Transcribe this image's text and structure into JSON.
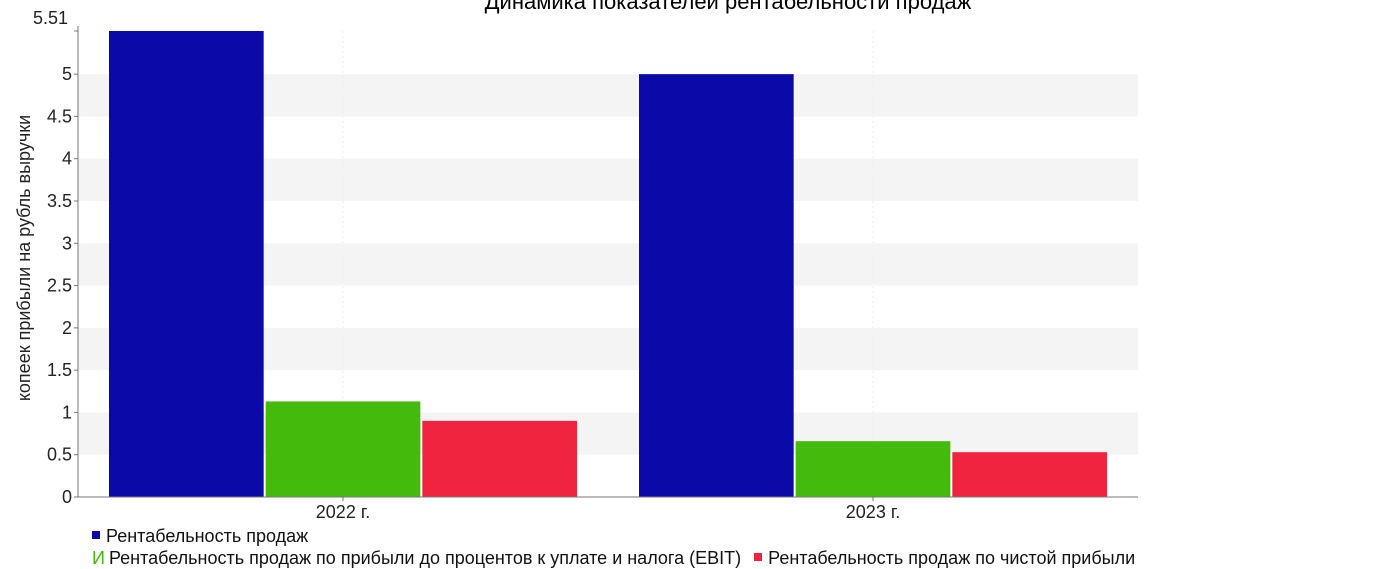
{
  "chart_data": {
    "type": "bar",
    "title": "Динамика показателей рентабельности продаж",
    "ylabel": "копеек прибыли на рубль выручки",
    "ylim": [
      0,
      5.51
    ],
    "y_ticks": [
      "0",
      "0.5",
      "1",
      "1.5",
      "2",
      "2.5",
      "3",
      "3.5",
      "4",
      "4.5",
      "5",
      "5.51"
    ],
    "categories": [
      "2022 г.",
      "2023 г."
    ],
    "series": [
      {
        "name": "Рентабельность продаж",
        "color": "#0b0aa8",
        "values": [
          5.51,
          5.0
        ]
      },
      {
        "name": "Рентабельность продаж по прибыли до процентов к уплате и налога (EBIT)",
        "color": "#44bb0c",
        "values": [
          1.13,
          0.66
        ]
      },
      {
        "name": "Рентабельность продаж по чистой прибыли",
        "color": "#f0243f",
        "values": [
          0.9,
          0.53
        ]
      }
    ],
    "legend": {
      "position": "bottom",
      "ebit_marker_letter": "И"
    },
    "grid": true
  }
}
